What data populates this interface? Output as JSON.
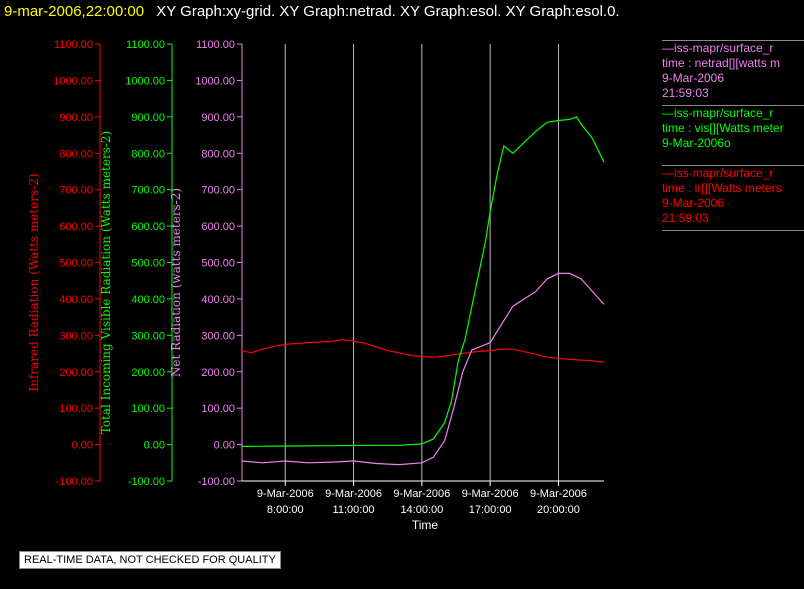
{
  "header": {
    "timestamp": "9-mar-2006,22:00:00",
    "titles": "XY Graph:xy-grid.  XY Graph:netrad.  XY Graph:esol.  XY Graph:esol.0."
  },
  "legend": {
    "netrad": {
      "line1": "—iss-mapr/surface_r",
      "line2": "time : netrad[][watts m",
      "line3": "9-Mar-2006",
      "line4": "21:59:03",
      "color": "#ee82ee"
    },
    "vis": {
      "line1": "—iss-mapr/surface_r",
      "line2": "time : vis[][Watts meter",
      "line3": "9-Mar-2006o",
      "color": "#00ff00"
    },
    "ir": {
      "line1": "—iss-mapr/surface_r",
      "line2": "time : ir[][Watts meters",
      "line3": "9-Mar-2006",
      "line4": "21:59:03",
      "color": "#ff0000"
    }
  },
  "disclaimer": "REAL-TIME DATA, NOT CHECKED FOR QUALITY",
  "chart_data": {
    "type": "line",
    "xlabel": "Time",
    "x_ticks": [
      {
        "date": "9-Mar-2006",
        "time": "8:00:00",
        "hour": 8
      },
      {
        "date": "9-Mar-2006",
        "time": "11:00:00",
        "hour": 11
      },
      {
        "date": "9-Mar-2006",
        "time": "14:00:00",
        "hour": 14
      },
      {
        "date": "9-Mar-2006",
        "time": "17:00:00",
        "hour": 17
      },
      {
        "date": "9-Mar-2006",
        "time": "20:00:00",
        "hour": 20
      }
    ],
    "xlim_hours": [
      6.1,
      22.0
    ],
    "ylim": [
      -100,
      1100
    ],
    "y_ticks": [
      "-100.00",
      "0.00",
      "100.00",
      "200.00",
      "300.00",
      "400.00",
      "500.00",
      "600.00",
      "700.00",
      "800.00",
      "900.00",
      "1000.00",
      "1100.00"
    ],
    "y_tick_values": [
      -100,
      0,
      100,
      200,
      300,
      400,
      500,
      600,
      700,
      800,
      900,
      1000,
      1100
    ],
    "axes": [
      {
        "label": "Infrared Radiation (Watts meters-2)",
        "color": "#ff0000"
      },
      {
        "label": "Total Incoming Visible Radiation (Watts meters-2)",
        "color": "#00ff00"
      },
      {
        "label": "Net Radiation (watts meters-2)",
        "color": "#ee82ee"
      }
    ],
    "series": [
      {
        "name": "ir",
        "color": "#ff0000",
        "points": [
          [
            6.1,
            258
          ],
          [
            6.5,
            252
          ],
          [
            7.0,
            262
          ],
          [
            7.5,
            270
          ],
          [
            8.0,
            275
          ],
          [
            9.0,
            280
          ],
          [
            10.0,
            283
          ],
          [
            10.5,
            288
          ],
          [
            11.0,
            284
          ],
          [
            11.5,
            278
          ],
          [
            12.0,
            268
          ],
          [
            12.5,
            258
          ],
          [
            13.0,
            252
          ],
          [
            13.5,
            245
          ],
          [
            14.0,
            242
          ],
          [
            14.5,
            240
          ],
          [
            15.0,
            243
          ],
          [
            15.5,
            248
          ],
          [
            16.0,
            252
          ],
          [
            16.5,
            256
          ],
          [
            17.0,
            258
          ],
          [
            17.5,
            262
          ],
          [
            18.0,
            262
          ],
          [
            18.5,
            255
          ],
          [
            19.0,
            248
          ],
          [
            19.5,
            240
          ],
          [
            20.0,
            237
          ],
          [
            20.5,
            234
          ],
          [
            21.0,
            232
          ],
          [
            21.5,
            230
          ],
          [
            22.0,
            226
          ]
        ]
      },
      {
        "name": "vis",
        "color": "#00ff00",
        "points": [
          [
            6.1,
            -5
          ],
          [
            8.0,
            -4
          ],
          [
            10.0,
            -3
          ],
          [
            12.0,
            -2
          ],
          [
            13.0,
            -2
          ],
          [
            14.0,
            2
          ],
          [
            14.5,
            15
          ],
          [
            15.0,
            60
          ],
          [
            15.3,
            120
          ],
          [
            15.6,
            230
          ],
          [
            15.9,
            290
          ],
          [
            16.2,
            380
          ],
          [
            16.5,
            470
          ],
          [
            16.8,
            560
          ],
          [
            17.0,
            640
          ],
          [
            17.3,
            740
          ],
          [
            17.6,
            820
          ],
          [
            18.0,
            800
          ],
          [
            18.5,
            830
          ],
          [
            19.0,
            860
          ],
          [
            19.5,
            885
          ],
          [
            20.0,
            890
          ],
          [
            20.5,
            893
          ],
          [
            20.8,
            900
          ],
          [
            21.0,
            880
          ],
          [
            21.5,
            840
          ],
          [
            22.0,
            775
          ]
        ]
      },
      {
        "name": "netrad",
        "color": "#ee82ee",
        "points": [
          [
            6.1,
            -45
          ],
          [
            7.0,
            -50
          ],
          [
            8.0,
            -45
          ],
          [
            9.0,
            -50
          ],
          [
            10.0,
            -48
          ],
          [
            11.0,
            -45
          ],
          [
            12.0,
            -52
          ],
          [
            13.0,
            -55
          ],
          [
            14.0,
            -50
          ],
          [
            14.5,
            -35
          ],
          [
            15.0,
            10
          ],
          [
            15.4,
            100
          ],
          [
            15.8,
            200
          ],
          [
            16.2,
            260
          ],
          [
            16.6,
            270
          ],
          [
            17.0,
            280
          ],
          [
            17.5,
            330
          ],
          [
            18.0,
            380
          ],
          [
            18.5,
            400
          ],
          [
            19.0,
            420
          ],
          [
            19.5,
            455
          ],
          [
            20.0,
            470
          ],
          [
            20.5,
            470
          ],
          [
            21.0,
            455
          ],
          [
            21.5,
            420
          ],
          [
            22.0,
            385
          ]
        ]
      }
    ]
  }
}
